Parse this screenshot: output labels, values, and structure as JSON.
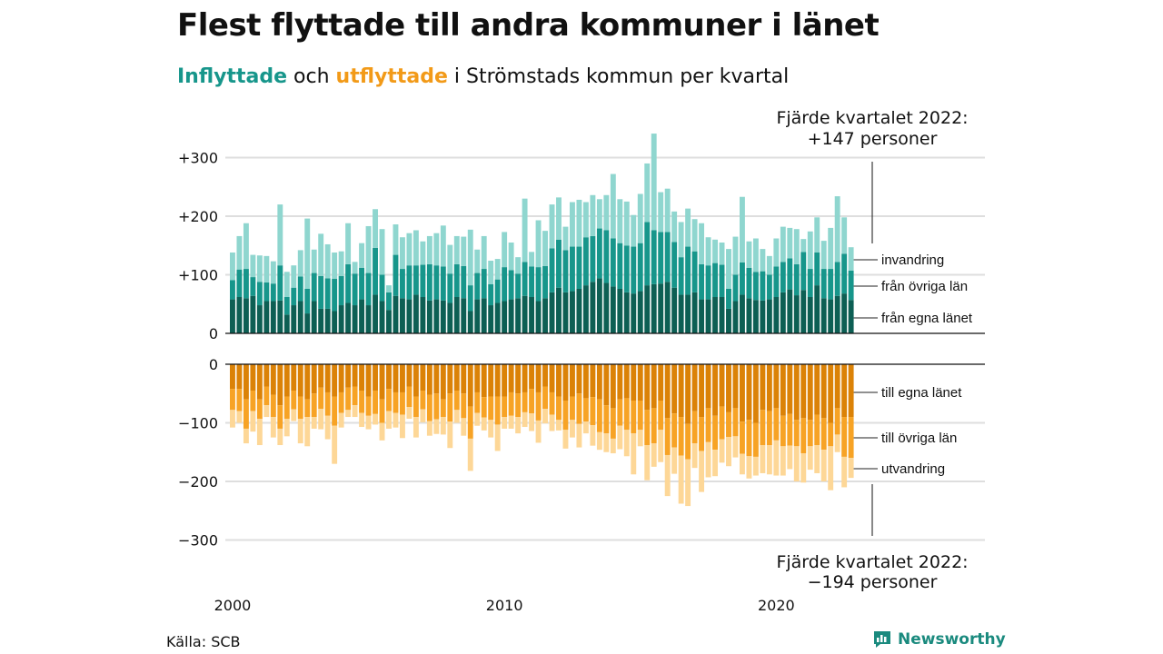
{
  "header": {
    "title": "Flest flyttade till andra kommuner i länet",
    "subtitle_in": "Inflyttade",
    "subtitle_mid": " och ",
    "subtitle_out": "utflyttade",
    "subtitle_rest": " i Strömstads kommun per kvartal"
  },
  "footer": {
    "source": "Källa: SCB",
    "brand": "Newsworthy"
  },
  "colors": {
    "in_egna": "#0d5f54",
    "in_ovriga": "#17968b",
    "in_invandring": "#8fd6cf",
    "out_egna": "#db8207",
    "out_ovriga": "#f7a325",
    "out_utvandring": "#fdd797"
  },
  "chart_data": {
    "type": "bar",
    "x_start": 2000,
    "quarters_per_year": 4,
    "x_ticks": [
      "2000",
      "2010",
      "2020"
    ],
    "title": "",
    "xlabel": "",
    "ylabel": "",
    "ylim": [
      -300,
      300
    ],
    "grid": true,
    "inflow": {
      "y_ticks": [
        "+300",
        "+200",
        "+100",
        "0"
      ],
      "series": [
        {
          "name": "från egna länet",
          "values": [
            58,
            62,
            60,
            64,
            48,
            55,
            55,
            56,
            32,
            48,
            55,
            34,
            55,
            42,
            42,
            38,
            48,
            52,
            48,
            58,
            48,
            66,
            55,
            40,
            64,
            60,
            58,
            66,
            62,
            56,
            58,
            56,
            52,
            62,
            60,
            38,
            58,
            60,
            48,
            52,
            55,
            58,
            60,
            64,
            62,
            55,
            60,
            70,
            78,
            70,
            72,
            76,
            82,
            88,
            94,
            86,
            80,
            76,
            70,
            68,
            72,
            82,
            84,
            85,
            88,
            78,
            66,
            66,
            70,
            58,
            58,
            62,
            62,
            42,
            55,
            66,
            60,
            57,
            56,
            58,
            62,
            70,
            75,
            65,
            74,
            62,
            82,
            60,
            58,
            64,
            68,
            57
          ]
        },
        {
          "name": "från övriga län",
          "values": [
            33,
            47,
            50,
            32,
            40,
            32,
            30,
            60,
            30,
            30,
            42,
            42,
            48,
            56,
            52,
            55,
            50,
            66,
            54,
            54,
            55,
            80,
            45,
            30,
            70,
            50,
            58,
            50,
            55,
            62,
            58,
            58,
            50,
            56,
            55,
            44,
            45,
            50,
            36,
            40,
            58,
            50,
            42,
            58,
            52,
            58,
            55,
            75,
            82,
            72,
            76,
            72,
            82,
            78,
            85,
            90,
            82,
            78,
            80,
            80,
            82,
            108,
            92,
            88,
            85,
            78,
            64,
            82,
            70,
            60,
            58,
            58,
            55,
            34,
            45,
            55,
            52,
            48,
            50,
            42,
            52,
            52,
            53,
            53,
            65,
            48,
            56,
            50,
            52,
            58,
            68,
            50
          ]
        },
        {
          "name": "invandring",
          "values": [
            47,
            57,
            78,
            38,
            45,
            45,
            38,
            104,
            43,
            38,
            45,
            120,
            40,
            72,
            58,
            45,
            42,
            70,
            20,
            42,
            80,
            66,
            78,
            12,
            52,
            54,
            55,
            60,
            40,
            48,
            55,
            70,
            49,
            48,
            50,
            95,
            40,
            56,
            40,
            35,
            60,
            47,
            28,
            108,
            25,
            80,
            60,
            75,
            72,
            40,
            76,
            80,
            60,
            70,
            50,
            60,
            110,
            75,
            75,
            54,
            84,
            100,
            165,
            68,
            74,
            52,
            60,
            65,
            55,
            70,
            48,
            40,
            38,
            68,
            65,
            112,
            45,
            57,
            38,
            32,
            48,
            60,
            52,
            60,
            22,
            64,
            60,
            48,
            70,
            112,
            62,
            40
          ]
        }
      ]
    },
    "outflow": {
      "y_ticks": [
        "0",
        "−100",
        "−200",
        "−300"
      ],
      "series": [
        {
          "name": "till egna länet",
          "values": [
            -42,
            -42,
            -60,
            -45,
            -60,
            -38,
            -52,
            -70,
            -55,
            -45,
            -55,
            -60,
            -50,
            -40,
            -48,
            -55,
            -48,
            -40,
            -38,
            -45,
            -55,
            -45,
            -60,
            -42,
            -48,
            -48,
            -38,
            -55,
            -45,
            -52,
            -50,
            -60,
            -50,
            -45,
            -50,
            -72,
            -48,
            -56,
            -55,
            -55,
            -55,
            -48,
            -50,
            -48,
            -42,
            -48,
            -38,
            -48,
            -55,
            -62,
            -55,
            -50,
            -58,
            -56,
            -60,
            -70,
            -75,
            -60,
            -58,
            -62,
            -62,
            -78,
            -75,
            -62,
            -92,
            -84,
            -90,
            -102,
            -80,
            -90,
            -75,
            -88,
            -72,
            -82,
            -75,
            -98,
            -95,
            -100,
            -78,
            -80,
            -75,
            -88,
            -85,
            -95,
            -92,
            -95,
            -86,
            -92,
            -100,
            -75,
            -90,
            -90
          ]
        },
        {
          "name": "till övriga län",
          "values": [
            -36,
            -38,
            -50,
            -35,
            -33,
            -32,
            -38,
            -40,
            -38,
            -32,
            -38,
            -30,
            -40,
            -36,
            -40,
            -50,
            -35,
            -38,
            -32,
            -38,
            -33,
            -40,
            -40,
            -38,
            -35,
            -38,
            -35,
            -35,
            -32,
            -45,
            -44,
            -30,
            -48,
            -33,
            -42,
            -55,
            -35,
            -35,
            -40,
            -48,
            -35,
            -40,
            -40,
            -34,
            -42,
            -48,
            -38,
            -38,
            -40,
            -50,
            -40,
            -52,
            -40,
            -48,
            -56,
            -48,
            -52,
            -45,
            -54,
            -56,
            -50,
            -60,
            -60,
            -50,
            -63,
            -58,
            -66,
            -60,
            -55,
            -58,
            -58,
            -58,
            -56,
            -42,
            -48,
            -55,
            -62,
            -58,
            -60,
            -58,
            -55,
            -52,
            -54,
            -45,
            -60,
            -45,
            -52,
            -54,
            -40,
            -45,
            -68,
            -70
          ]
        },
        {
          "name": "utvandring",
          "values": [
            -30,
            -20,
            -25,
            -35,
            -45,
            -20,
            -35,
            -28,
            -30,
            -20,
            -42,
            -50,
            -20,
            -35,
            -40,
            -65,
            -25,
            -12,
            -20,
            -24,
            -23,
            -18,
            -30,
            -30,
            -25,
            -40,
            -20,
            -35,
            -22,
            -25,
            -25,
            -30,
            -45,
            -22,
            -30,
            -55,
            -22,
            -22,
            -30,
            -45,
            -20,
            -22,
            -28,
            -25,
            -30,
            -38,
            -25,
            -28,
            -18,
            -32,
            -30,
            -40,
            -20,
            -35,
            -30,
            -32,
            -25,
            -40,
            -45,
            -70,
            -28,
            -60,
            -40,
            -55,
            -70,
            -45,
            -82,
            -80,
            -42,
            -70,
            -60,
            -45,
            -40,
            -50,
            -36,
            -35,
            -38,
            -32,
            -48,
            -50,
            -60,
            -50,
            -40,
            -60,
            -50,
            -40,
            -48,
            -54,
            -75,
            -30,
            -52,
            -34
          ]
        }
      ]
    },
    "annotations": {
      "top_line1": "Fjärde kvartalet 2022:",
      "top_line2": "+147 personer",
      "bottom_line1": "Fjärde kvartalet 2022:",
      "bottom_line2": "−194 personer"
    }
  }
}
